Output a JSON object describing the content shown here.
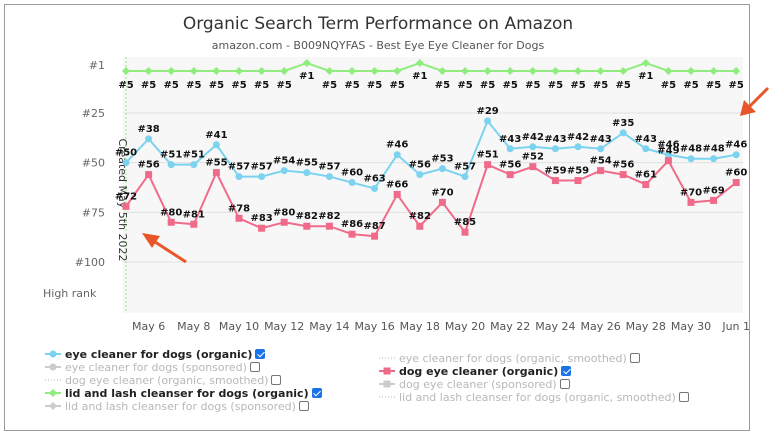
{
  "chart_data": {
    "type": "line",
    "title": "Organic Search Term Performance on Amazon",
    "subtitle": "amazon.com - B009NQYFAS - Best Eye Eye Cleaner for Dogs",
    "y_ticks": [
      "#1",
      "#25",
      "#50",
      "#75",
      "#100"
    ],
    "y_axis_note": "High rank",
    "ylim": [
      1,
      100
    ],
    "y_reversed": true,
    "x_start": "May 5",
    "x_ticks": [
      "May 6",
      "May 8",
      "May 10",
      "May 12",
      "May 14",
      "May 16",
      "May 18",
      "May 20",
      "May 22",
      "May 24",
      "May 26",
      "May 28",
      "May 30",
      "Jun 1"
    ],
    "annotation": "Created May 5th 2022",
    "series": [
      {
        "name": "lid and lash cleanser for dogs (organic)",
        "color": "#90ed7d",
        "values": [
          5,
          5,
          5,
          5,
          5,
          5,
          5,
          5,
          1,
          5,
          5,
          5,
          5,
          1,
          5,
          5,
          5,
          5,
          5,
          5,
          5,
          5,
          5,
          1,
          5,
          5,
          5,
          5,
          5,
          5,
          1,
          1
        ]
      },
      {
        "name": "eye cleaner for dogs (organic)",
        "color": "#7cd3ef",
        "values": [
          50,
          38,
          51,
          51,
          41,
          57,
          57,
          54,
          55,
          57,
          60,
          63,
          46,
          56,
          53,
          57,
          29,
          43,
          42,
          43,
          42,
          43,
          35,
          43,
          46,
          48,
          48,
          46
        ]
      },
      {
        "name": "dog eye cleaner (organic)",
        "color": "#f06b8a",
        "values": [
          72,
          56,
          80,
          81,
          55,
          78,
          83,
          80,
          82,
          82,
          86,
          87,
          66,
          82,
          70,
          85,
          51,
          56,
          52,
          59,
          59,
          54,
          56,
          61,
          49,
          70,
          69,
          60
        ]
      }
    ],
    "legend": [
      {
        "label": "eye cleaner for dogs (organic)",
        "active": true,
        "checked": true,
        "color": "#7cd3ef",
        "marker": "circle"
      },
      {
        "label": "eye cleaner for dogs (organic, smoothed)",
        "active": false,
        "checked": false,
        "color": "#cccccc",
        "marker": "dotted"
      },
      {
        "label": "eye cleaner for dogs (sponsored)",
        "active": false,
        "checked": false,
        "color": "#cccccc",
        "marker": "circle"
      },
      {
        "label": "dog eye cleaner (organic)",
        "active": true,
        "checked": true,
        "color": "#f06b8a",
        "marker": "square"
      },
      {
        "label": "dog eye cleaner (organic, smoothed)",
        "active": false,
        "checked": false,
        "color": "#cccccc",
        "marker": "dotted"
      },
      {
        "label": "dog eye cleaner (sponsored)",
        "active": false,
        "checked": false,
        "color": "#cccccc",
        "marker": "square"
      },
      {
        "label": "lid and lash cleanser for dogs (organic)",
        "active": true,
        "checked": true,
        "color": "#90ed7d",
        "marker": "diamond"
      },
      {
        "label": "lid and lash cleanser for dogs (organic, smoothed)",
        "active": false,
        "checked": false,
        "color": "#cccccc",
        "marker": "dotted"
      },
      {
        "label": "lid and lash cleanser for dogs (sponsored)",
        "active": false,
        "checked": false,
        "color": "#cccccc",
        "marker": "diamond"
      }
    ]
  },
  "colors": {
    "arrow": "#e8562a",
    "plot_bg": "#f7f7f7",
    "checkbox_checked": "#1a73e8"
  }
}
